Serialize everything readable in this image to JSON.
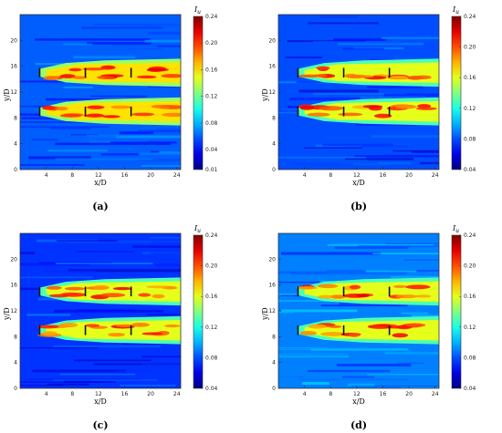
{
  "chart_data": [
    {
      "type": "heatmap",
      "panel_label": "(a)",
      "xlabel": "x/D",
      "ylabel": "y/D",
      "colorbar_title": "I",
      "colorbar_subscript": "u",
      "x_ticks": [
        "4",
        "8",
        "12",
        "16",
        "20",
        "24"
      ],
      "y_ticks": [
        "0",
        "4",
        "8",
        "12",
        "16",
        "20"
      ],
      "xlim": [
        0,
        24.6
      ],
      "ylim": [
        0,
        24
      ],
      "colorbar_ticks": [
        "0.01",
        "0.04",
        "0.08",
        "0.12",
        "0.16",
        "0.20",
        "0.24"
      ],
      "colorbar_tick_values": [
        0.01,
        0.04,
        0.08,
        0.12,
        0.16,
        0.2,
        0.24
      ],
      "colorbar_range": [
        0.01,
        0.24
      ],
      "turbine_x": [
        3,
        10,
        17
      ],
      "wake_y": [
        15,
        9
      ],
      "background_level": 0.06
    },
    {
      "type": "heatmap",
      "panel_label": "(b)",
      "xlabel": "x/D",
      "ylabel": "y/D",
      "colorbar_title": "I",
      "colorbar_subscript": "u",
      "x_ticks": [
        "4",
        "8",
        "12",
        "16",
        "20",
        "24"
      ],
      "y_ticks": [
        "0",
        "4",
        "8",
        "12",
        "16",
        "20"
      ],
      "xlim": [
        0,
        24.6
      ],
      "ylim": [
        0,
        24
      ],
      "colorbar_ticks": [
        "0.04",
        "0.08",
        "0.12",
        "0.16",
        "0.20",
        "0.24"
      ],
      "colorbar_tick_values": [
        0.04,
        0.08,
        0.12,
        0.16,
        0.2,
        0.24
      ],
      "colorbar_range": [
        0.04,
        0.24
      ],
      "turbine_x": [
        3,
        10,
        17
      ],
      "wake_y": [
        15,
        9
      ],
      "background_level": 0.08
    },
    {
      "type": "heatmap",
      "panel_label": "(c)",
      "xlabel": "x/D",
      "ylabel": "y/D",
      "colorbar_title": "I",
      "colorbar_subscript": "u",
      "x_ticks": [
        "4",
        "8",
        "12",
        "16",
        "20",
        "24"
      ],
      "y_ticks": [
        "0",
        "4",
        "8",
        "12",
        "16",
        "20"
      ],
      "xlim": [
        0,
        24.6
      ],
      "ylim": [
        0,
        24
      ],
      "colorbar_ticks": [
        "0.04",
        "0.08",
        "0.12",
        "0.16",
        "0.20",
        "0.24"
      ],
      "colorbar_tick_values": [
        0.04,
        0.08,
        0.12,
        0.16,
        0.2,
        0.24
      ],
      "colorbar_range": [
        0.04,
        0.24
      ],
      "turbine_x": [
        3,
        10,
        17
      ],
      "wake_y": [
        15,
        9
      ],
      "background_level": 0.075
    },
    {
      "type": "heatmap",
      "panel_label": "(d)",
      "xlabel": "x/D",
      "ylabel": "y/D",
      "colorbar_title": "I",
      "colorbar_subscript": "u",
      "x_ticks": [
        "4",
        "8",
        "12",
        "16",
        "20",
        "24"
      ],
      "y_ticks": [
        "0",
        "4",
        "8",
        "12",
        "16",
        "20"
      ],
      "xlim": [
        0,
        24.6
      ],
      "ylim": [
        0,
        24
      ],
      "colorbar_ticks": [
        "0.04",
        "0.08",
        "0.12",
        "0.16",
        "0.20",
        "0.24"
      ],
      "colorbar_tick_values": [
        0.04,
        0.08,
        0.12,
        0.16,
        0.2,
        0.24
      ],
      "colorbar_range": [
        0.04,
        0.24
      ],
      "turbine_x": [
        3,
        10,
        17
      ],
      "wake_y": [
        15,
        9
      ],
      "background_level": 0.09
    }
  ]
}
